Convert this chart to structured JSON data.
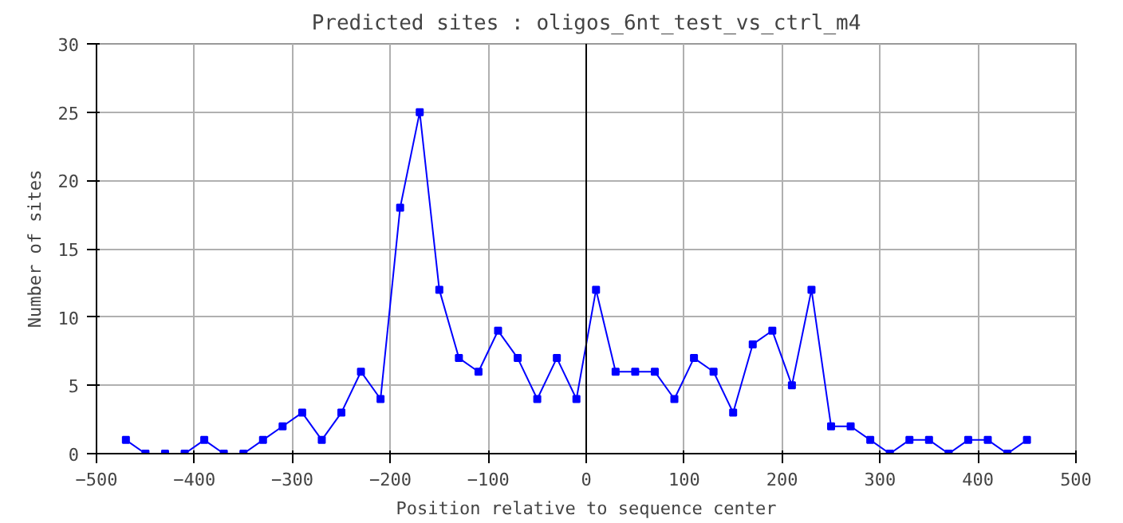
{
  "chart_data": {
    "type": "line",
    "title": "Predicted sites : oligos_6nt_test_vs_ctrl_m4",
    "xlabel": "Position relative to sequence center",
    "ylabel": "Number of sites",
    "x": [
      -470,
      -450,
      -430,
      -410,
      -390,
      -370,
      -350,
      -330,
      -310,
      -290,
      -270,
      -250,
      -230,
      -210,
      -190,
      -170,
      -150,
      -130,
      -110,
      -90,
      -70,
      -50,
      -30,
      -10,
      10,
      30,
      50,
      70,
      90,
      110,
      130,
      150,
      170,
      190,
      210,
      230,
      250,
      270,
      290,
      310,
      330,
      350,
      370,
      390,
      410,
      430,
      450
    ],
    "series": [
      {
        "color": "#0000ff",
        "values": [
          1,
          0,
          0,
          0,
          1,
          0,
          0,
          1,
          2,
          3,
          1,
          3,
          6,
          4,
          18,
          25,
          12,
          7,
          6,
          9,
          7,
          4,
          7,
          4,
          12,
          6,
          6,
          6,
          4,
          7,
          6,
          3,
          8,
          9,
          5,
          12,
          2,
          2,
          1,
          0,
          1,
          1,
          0,
          1,
          1,
          0,
          1
        ]
      }
    ],
    "xlim": [
      -500,
      500
    ],
    "xticks": [
      -500,
      -400,
      -300,
      -200,
      -100,
      0,
      100,
      200,
      300,
      400,
      500
    ],
    "ylim": [
      0,
      30
    ],
    "yticks": [
      0,
      5,
      10,
      15,
      20,
      25,
      30
    ],
    "ref_lines": [
      {
        "axis": "x",
        "value": 0,
        "color": "#000000"
      }
    ],
    "grid": true,
    "marker": "square",
    "line_style": "solid"
  }
}
